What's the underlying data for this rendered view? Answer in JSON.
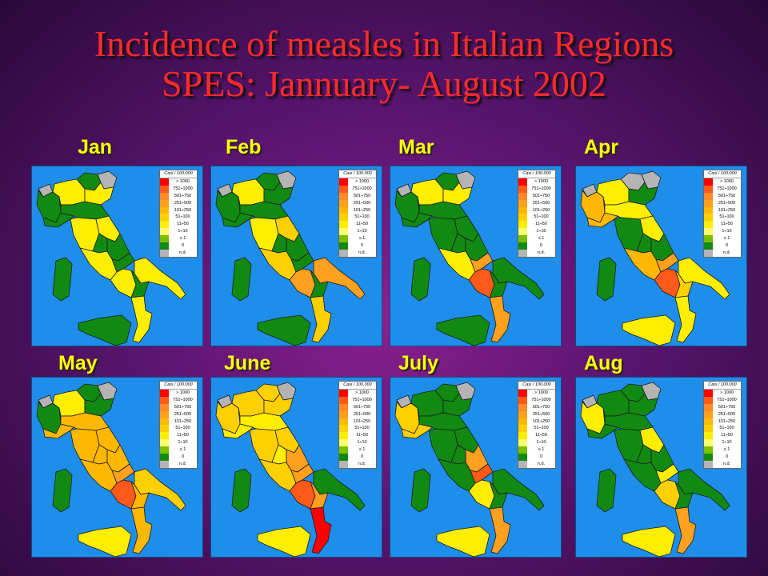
{
  "title": {
    "line1": "Incidence of measles in Italian Regions",
    "line2": "SPES: Jannuary- August 2002"
  },
  "colors": {
    "gt1000": "#ff0000",
    "c751_1000": "#ff5a1a",
    "c501_750": "#ff8a28",
    "c251_500": "#ffa01e",
    "c101_250": "#ffb800",
    "c51_100": "#ffd000",
    "c11_50": "#ffee00",
    "c1_10": "#ffff70",
    "le1": "#7ac000",
    "zero": "#128a12",
    "nd": "#b4b4b4"
  },
  "legend": {
    "title": "Casi / 100.000",
    "rows": [
      {
        "label": "> 1000",
        "color": "#ff0000"
      },
      {
        "label": "751÷1000",
        "color": "#ff5a1a"
      },
      {
        "label": "501÷750",
        "color": "#ff8a28"
      },
      {
        "label": "251÷500",
        "color": "#ffa01e"
      },
      {
        "label": "101÷250",
        "color": "#ffb800"
      },
      {
        "label": "51÷100",
        "color": "#ffd000"
      },
      {
        "label": "11÷50",
        "color": "#ffee00"
      },
      {
        "label": "1÷10",
        "color": "#ffff70"
      },
      {
        "label": "≤ 1",
        "color": "#7ac000"
      },
      {
        "label": "0",
        "color": "#128a12"
      },
      {
        "label": "n.d.",
        "color": "#b4b4b4"
      }
    ]
  },
  "maps": [
    {
      "month": "Jan",
      "regions": {
        "aosta": "#b4b4b4",
        "piedmont": "#128a12",
        "lombardy": "#ffee00",
        "trentino": "#128a12",
        "veneto": "#ffee00",
        "friuli": "#b4b4b4",
        "liguria": "#128a12",
        "emilia": "#128a12",
        "tuscany": "#ffee00",
        "umbria": "#128a12",
        "marche": "#ffee00",
        "lazio": "#ffee00",
        "abruzzo": "#128a12",
        "molise": "#128a12",
        "campania": "#ffee00",
        "puglia": "#ffee00",
        "basilicata": "#128a12",
        "calabria": "#ffee00",
        "sicily": "#128a12",
        "sardinia": "#128a12"
      }
    },
    {
      "month": "Feb",
      "regions": {
        "aosta": "#b4b4b4",
        "piedmont": "#128a12",
        "lombardy": "#ffee00",
        "trentino": "#128a12",
        "veneto": "#128a12",
        "friuli": "#b4b4b4",
        "liguria": "#128a12",
        "emilia": "#128a12",
        "tuscany": "#ffee00",
        "umbria": "#128a12",
        "marche": "#ffd000",
        "lazio": "#ffd000",
        "abruzzo": "#128a12",
        "molise": "#128a12",
        "campania": "#ffa01e",
        "puglia": "#ffa01e",
        "basilicata": "#128a12",
        "calabria": "#ffd000",
        "sicily": "#128a12",
        "sardinia": "#128a12"
      }
    },
    {
      "month": "Mar",
      "regions": {
        "aosta": "#b4b4b4",
        "piedmont": "#128a12",
        "lombardy": "#ffee00",
        "trentino": "#128a12",
        "veneto": "#ffee00",
        "friuli": "#b4b4b4",
        "liguria": "#128a12",
        "emilia": "#128a12",
        "tuscany": "#128a12",
        "umbria": "#128a12",
        "marche": "#128a12",
        "lazio": "#ffee00",
        "abruzzo": "#128a12",
        "molise": "#ffa01e",
        "campania": "#ff5a1a",
        "puglia": "#128a12",
        "basilicata": "#128a12",
        "calabria": "#ffa01e",
        "sicily": "#128a12",
        "sardinia": "#128a12"
      }
    },
    {
      "month": "Apr",
      "regions": {
        "aosta": "#b4b4b4",
        "piedmont": "#ffb800",
        "lombardy": "#ffee00",
        "trentino": "#b4b4b4",
        "veneto": "#128a12",
        "friuli": "#b4b4b4",
        "liguria": "#ffb800",
        "emilia": "#ffee00",
        "tuscany": "#128a12",
        "umbria": "#128a12",
        "marche": "#ffee00",
        "lazio": "#ffb800",
        "abruzzo": "#128a12",
        "molise": "#ffa01e",
        "campania": "#ff5a1a",
        "puglia": "#ffee00",
        "basilicata": "#ffd000",
        "calabria": "#ffee00",
        "sicily": "#ffee00",
        "sardinia": "#128a12"
      }
    },
    {
      "month": "May",
      "regions": {
        "aosta": "#b4b4b4",
        "piedmont": "#128a12",
        "lombardy": "#ffee00",
        "trentino": "#128a12",
        "veneto": "#128a12",
        "friuli": "#b4b4b4",
        "liguria": "#ffb800",
        "emilia": "#ffb800",
        "tuscany": "#ffb800",
        "umbria": "#ffb800",
        "marche": "#ffb800",
        "lazio": "#ffb800",
        "abruzzo": "#ffb800",
        "molise": "#ffa01e",
        "campania": "#ff5a1a",
        "puglia": "#ffd000",
        "basilicata": "#ffb800",
        "calabria": "#ffb800",
        "sicily": "#ffee00",
        "sardinia": "#128a12"
      }
    },
    {
      "month": "June",
      "regions": {
        "aosta": "#b4b4b4",
        "piedmont": "#ffd000",
        "lombardy": "#ffd000",
        "trentino": "#ffd000",
        "veneto": "#ffd000",
        "friuli": "#b4b4b4",
        "liguria": "#ffee00",
        "emilia": "#ffee00",
        "tuscany": "#ffd000",
        "umbria": "#ffee00",
        "marche": "#ffd000",
        "lazio": "#ffd000",
        "abruzzo": "#ffa01e",
        "molise": "#ffa01e",
        "campania": "#ff5a1a",
        "puglia": "#128a12",
        "basilicata": "#ffa01e",
        "calabria": "#ff0000",
        "sicily": "#ffee00",
        "sardinia": "#128a12"
      }
    },
    {
      "month": "July",
      "regions": {
        "aosta": "#b4b4b4",
        "piedmont": "#ffd000",
        "lombardy": "#128a12",
        "trentino": "#128a12",
        "veneto": "#128a12",
        "friuli": "#b4b4b4",
        "liguria": "#ffd000",
        "emilia": "#128a12",
        "tuscany": "#128a12",
        "umbria": "#128a12",
        "marche": "#128a12",
        "lazio": "#128a12",
        "abruzzo": "#ffa01e",
        "molise": "#ff5a1a",
        "campania": "#ffee00",
        "puglia": "#128a12",
        "basilicata": "#128a12",
        "calabria": "#ffa01e",
        "sicily": "#ffee00",
        "sardinia": "#128a12"
      }
    },
    {
      "month": "Aug",
      "regions": {
        "aosta": "#b4b4b4",
        "piedmont": "#ffee00",
        "lombardy": "#128a12",
        "trentino": "#128a12",
        "veneto": "#128a12",
        "friuli": "#b4b4b4",
        "liguria": "#128a12",
        "emilia": "#128a12",
        "tuscany": "#128a12",
        "umbria": "#128a12",
        "marche": "#ffee00",
        "lazio": "#128a12",
        "abruzzo": "#128a12",
        "molise": "#ffee00",
        "campania": "#ffd000",
        "puglia": "#128a12",
        "basilicata": "#128a12",
        "calabria": "#ffa01e",
        "sicily": "#ffee00",
        "sardinia": "#128a12"
      }
    }
  ]
}
